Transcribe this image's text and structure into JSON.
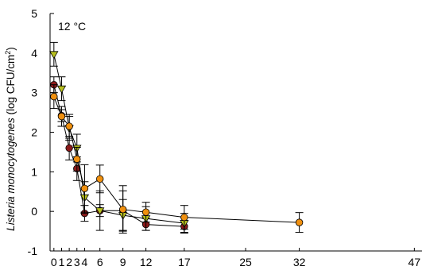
{
  "chart_data": {
    "type": "scatter",
    "annotation": "12 °C",
    "ylabel": {
      "species": "Listeria monocytogenes",
      "unit_prefix": " (log CFU/cm",
      "unit_sup": "2",
      "unit_suffix": ")"
    },
    "xlim": [
      -0.5,
      48
    ],
    "ylim": [
      -1,
      5
    ],
    "x_ticks": [
      0,
      1,
      2,
      3,
      4,
      6,
      9,
      12,
      17,
      25,
      32,
      47
    ],
    "y_ticks": [
      -1,
      0,
      1,
      2,
      3,
      4,
      5
    ],
    "grid": false,
    "series": [
      {
        "marker": "circle",
        "color": "#8B1A1A",
        "points": [
          {
            "x": 0,
            "y": 3.2,
            "err": 0.2
          },
          {
            "x": 1,
            "y": 2.42,
            "err": 0.15
          },
          {
            "x": 2,
            "y": 1.6,
            "err": 0.3
          },
          {
            "x": 3,
            "y": 1.08,
            "err": 0.3
          },
          {
            "x": 4,
            "y": -0.05,
            "err": 0.2
          },
          {
            "x": 6,
            "y": 0.02,
            "err": 0.15
          },
          {
            "x": 9,
            "y": 0.02,
            "err": 0.5
          },
          {
            "x": 12,
            "y": -0.33,
            "err": 0.15
          },
          {
            "x": 17,
            "y": -0.38,
            "err": 0.15
          }
        ]
      },
      {
        "marker": "triangle-down",
        "color": "#B8C020",
        "points": [
          {
            "x": 0,
            "y": 3.97,
            "err": 0.3
          },
          {
            "x": 1,
            "y": 3.1,
            "err": 0.3
          },
          {
            "x": 2,
            "y": 2.1,
            "err": 0.3
          },
          {
            "x": 3,
            "y": 1.6,
            "err": 0.35
          },
          {
            "x": 4,
            "y": 0.35,
            "err": 0.4
          },
          {
            "x": 6,
            "y": 0.02,
            "err": 0.5
          },
          {
            "x": 9,
            "y": -0.1,
            "err": 0.4
          },
          {
            "x": 12,
            "y": -0.18,
            "err": 0.3
          },
          {
            "x": 17,
            "y": -0.3,
            "err": 0.25
          }
        ]
      },
      {
        "marker": "circle",
        "color": "#F0900F",
        "points": [
          {
            "x": 0,
            "y": 2.9,
            "err": 0.3
          },
          {
            "x": 1,
            "y": 2.4,
            "err": 0.25
          },
          {
            "x": 2,
            "y": 2.15,
            "err": 0.3
          },
          {
            "x": 3,
            "y": 1.32,
            "err": 0.3
          },
          {
            "x": 4,
            "y": 0.58,
            "err": 0.6
          },
          {
            "x": 6,
            "y": 0.82,
            "err": 0.35
          },
          {
            "x": 9,
            "y": 0.05,
            "err": 0.6
          },
          {
            "x": 12,
            "y": -0.02,
            "err": 0.25
          },
          {
            "x": 17,
            "y": -0.15,
            "err": 0.3
          },
          {
            "x": 32,
            "y": -0.28,
            "err": 0.25
          }
        ]
      }
    ]
  }
}
